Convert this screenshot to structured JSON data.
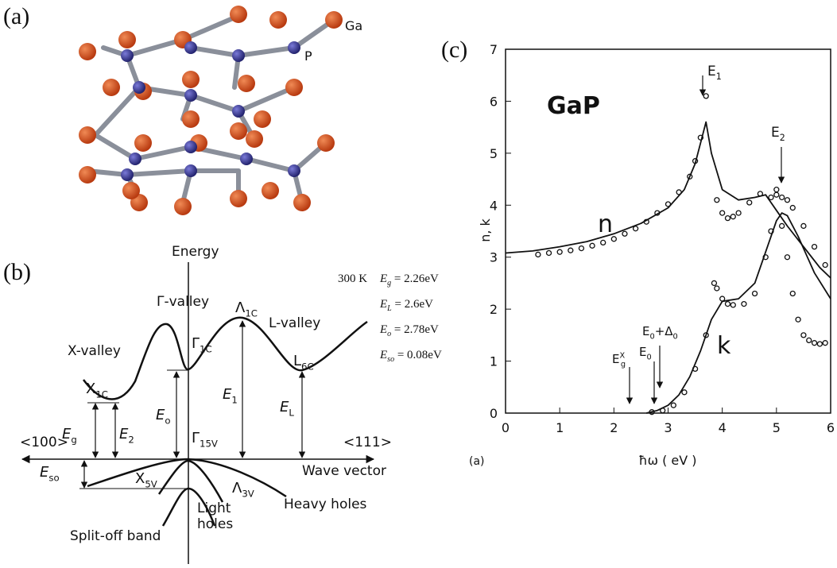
{
  "panel_a": {
    "label": "(a)",
    "ga": "Ga",
    "p": "P"
  },
  "panel_b": {
    "label": "(b)",
    "energy": "Energy",
    "gamma_valley": "Γ-valley",
    "x_valley": "X-valley",
    "l_valley": "L-valley",
    "lambda1c": {
      "main": "Λ",
      "sub": "1C"
    },
    "gamma1c": {
      "main": "Γ",
      "sub": "1C"
    },
    "l6c": {
      "main": "L",
      "sub": "6C"
    },
    "x1c": {
      "main": "X",
      "sub": "1C"
    },
    "eg": {
      "main": "E",
      "sub": "g"
    },
    "e2": {
      "main": "E",
      "sub": "2"
    },
    "eo": {
      "main": "E",
      "sub": "o"
    },
    "e1": {
      "main": "E",
      "sub": "1"
    },
    "el": {
      "main": "E",
      "sub": "L"
    },
    "eso": {
      "main": "E",
      "sub": "so"
    },
    "dir100": "<100>",
    "dir111": "<111>",
    "gamma15v": {
      "main": "Γ",
      "sub": "15V"
    },
    "wave_vector": "Wave vector",
    "x5v": {
      "main": "X",
      "sub": "5V"
    },
    "lambda3v": {
      "main": "Λ",
      "sub": "3V"
    },
    "light_holes": [
      "Light",
      "holes"
    ],
    "heavy_holes": "Heavy holes",
    "split_off": "Split-off band",
    "temperature": "300 K",
    "params": [
      {
        "sym": "E",
        "sub": "g",
        "rest": " = 2.26eV"
      },
      {
        "sym": "E",
        "sub": "L",
        "rest": " = 2.6eV"
      },
      {
        "sym": "E",
        "sub": "o",
        "rest": " = 2.78eV"
      },
      {
        "sym": "E",
        "sub": "so",
        "rest": " = 0.08eV"
      }
    ]
  },
  "chart_data": {
    "type": "line",
    "panel_label": "(c)",
    "title": "GaP",
    "x_label": "ħω ( eV )",
    "y_label": "n, k",
    "corner_label": "(a)",
    "xlim": [
      0,
      6
    ],
    "ylim": [
      0,
      7
    ],
    "xticks": [
      0,
      1,
      2,
      3,
      4,
      5,
      6
    ],
    "yticks": [
      0,
      1,
      2,
      3,
      4,
      5,
      6,
      7
    ],
    "series": [
      {
        "name": "n",
        "color": "#111",
        "x": [
          0,
          0.5,
          1,
          1.5,
          2,
          2.5,
          3,
          3.3,
          3.5,
          3.6,
          3.7,
          3.8,
          4.0,
          4.3,
          4.6,
          4.8,
          5.0,
          5.2,
          5.5,
          5.8,
          6.0
        ],
        "values": [
          3.08,
          3.12,
          3.2,
          3.3,
          3.45,
          3.65,
          3.95,
          4.3,
          4.8,
          5.2,
          5.6,
          5.0,
          4.3,
          4.1,
          4.15,
          4.2,
          3.9,
          3.6,
          3.2,
          2.8,
          2.6
        ]
      },
      {
        "name": "k",
        "color": "#111",
        "x": [
          2.6,
          2.8,
          3.0,
          3.2,
          3.4,
          3.6,
          3.8,
          4.0,
          4.3,
          4.6,
          4.8,
          5.0,
          5.1,
          5.2,
          5.4,
          5.7,
          6.0
        ],
        "values": [
          0,
          0.05,
          0.15,
          0.35,
          0.7,
          1.2,
          1.8,
          2.15,
          2.2,
          2.5,
          3.1,
          3.7,
          3.85,
          3.8,
          3.4,
          2.7,
          2.2
        ]
      },
      {
        "marker": "circle",
        "color": "#111",
        "x": [
          0.6,
          0.8,
          1.0,
          1.2,
          1.4,
          1.6,
          1.8,
          2.0,
          2.2,
          2.4,
          2.6,
          2.8,
          3.0,
          3.2,
          3.4,
          3.5,
          3.6,
          3.7,
          3.9,
          4.0,
          4.1,
          4.2,
          4.3,
          4.5,
          4.7,
          4.9,
          5.0,
          5.1,
          5.2,
          5.3,
          5.5,
          5.7,
          5.9
        ],
        "values": [
          3.05,
          3.08,
          3.1,
          3.13,
          3.17,
          3.22,
          3.28,
          3.35,
          3.45,
          3.55,
          3.68,
          3.85,
          4.02,
          4.25,
          4.55,
          4.85,
          5.3,
          6.1,
          4.1,
          3.85,
          3.75,
          3.78,
          3.85,
          4.05,
          4.22,
          4.15,
          4.3,
          4.15,
          4.1,
          3.95,
          3.6,
          3.2,
          2.85
        ]
      },
      {
        "marker": "circle",
        "color": "#111",
        "x": [
          2.7,
          2.9,
          3.1,
          3.3,
          3.5,
          3.7,
          3.85,
          3.9,
          4.0,
          4.1,
          4.2,
          4.4,
          4.6,
          4.8,
          4.9,
          5.0,
          5.1,
          5.2,
          5.3,
          5.4,
          5.5,
          5.6,
          5.7,
          5.8,
          5.9
        ],
        "values": [
          0.02,
          0.05,
          0.15,
          0.4,
          0.85,
          1.5,
          2.5,
          2.4,
          2.2,
          2.1,
          2.08,
          2.1,
          2.3,
          3.0,
          3.5,
          4.2,
          3.6,
          3.0,
          2.3,
          1.8,
          1.5,
          1.4,
          1.35,
          1.33,
          1.35
        ]
      }
    ],
    "annotations": {
      "e1": {
        "main": "E",
        "sub": "1"
      },
      "e2": {
        "main": "E",
        "sub": "2"
      },
      "e0_delta": {
        "main": "E",
        "sub": "0",
        "rest": "+Δ",
        "sub2": "0"
      },
      "e0": {
        "main": "E",
        "sub": "0"
      },
      "egx": {
        "main": "E",
        "sub": "g",
        "sup": "X"
      }
    }
  }
}
